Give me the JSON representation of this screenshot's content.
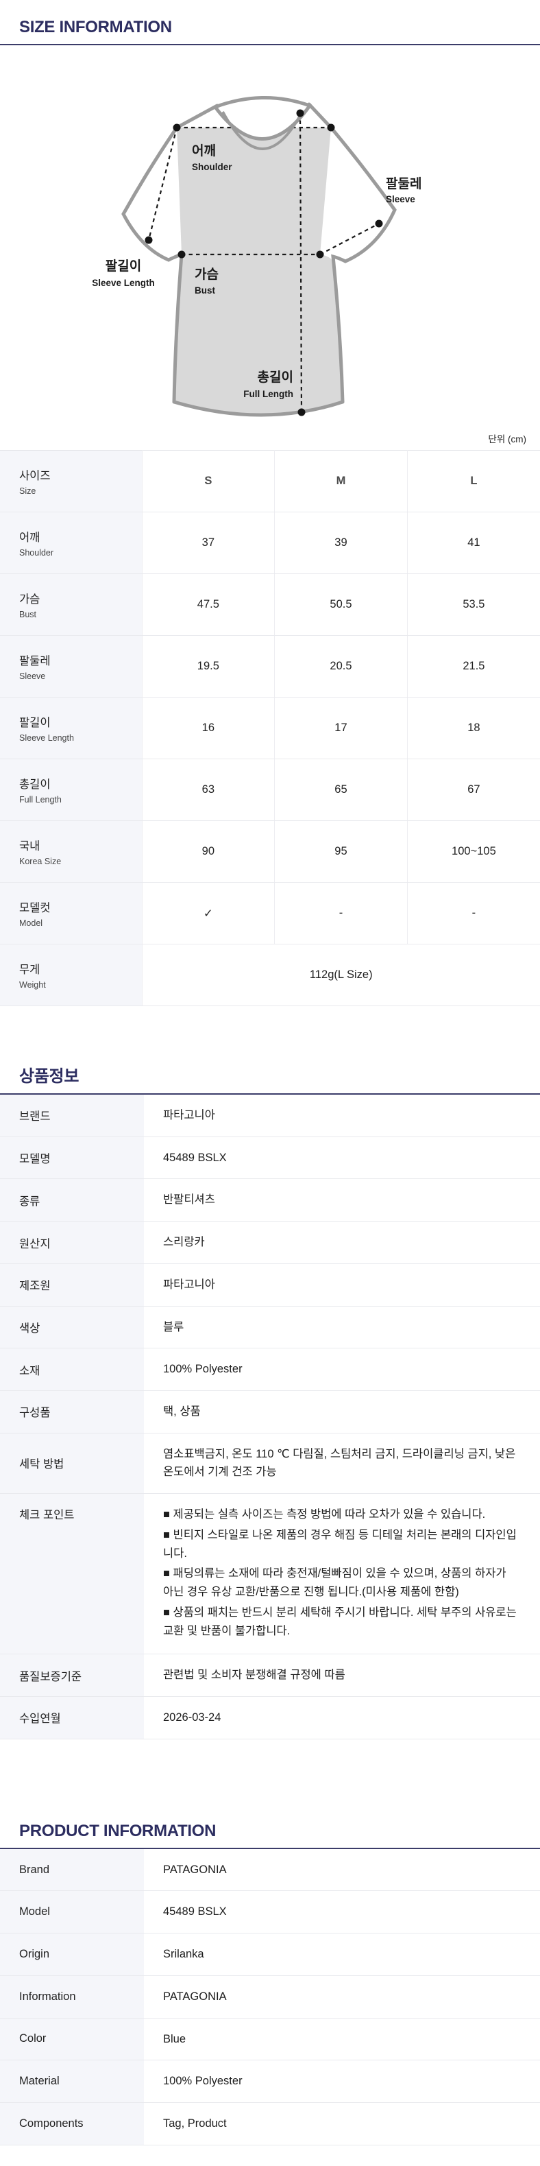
{
  "colors": {
    "accent_navy": "#2c2d60",
    "rule_navy": "#3b3c69",
    "label_column_bg": "#f5f6fa",
    "row_border": "#e9eaee",
    "shirt_panel_fill": "#d9d9d9",
    "shirt_outline": "#9b9b9b"
  },
  "size_section": {
    "title": "SIZE INFORMATION",
    "unit": "단위 (cm)",
    "diagram_labels": {
      "shoulder_kr": "어깨",
      "shoulder_en": "Shoulder",
      "sleeve_kr": "팔둘레",
      "sleeve_en": "Sleeve",
      "bust_kr": "가슴",
      "bust_en": "Bust",
      "sleeve_length_kr": "팔길이",
      "sleeve_length_en": "Sleeve Length",
      "full_length_kr": "총길이",
      "full_length_en": "Full Length"
    },
    "table": {
      "rows": [
        {
          "kr": "사이즈",
          "en": "Size",
          "values": [
            "S",
            "M",
            "L"
          ],
          "header": true
        },
        {
          "kr": "어깨",
          "en": "Shoulder",
          "values": [
            "37",
            "39",
            "41"
          ]
        },
        {
          "kr": "가슴",
          "en": "Bust",
          "values": [
            "47.5",
            "50.5",
            "53.5"
          ]
        },
        {
          "kr": "팔둘레",
          "en": "Sleeve",
          "values": [
            "19.5",
            "20.5",
            "21.5"
          ]
        },
        {
          "kr": "팔길이",
          "en": "Sleeve Length",
          "values": [
            "16",
            "17",
            "18"
          ]
        },
        {
          "kr": "총길이",
          "en": "Full Length",
          "values": [
            "63",
            "65",
            "67"
          ]
        },
        {
          "kr": "국내",
          "en": "Korea Size",
          "values": [
            "90",
            "95",
            "100~105"
          ]
        },
        {
          "kr": "모델컷",
          "en": "Model",
          "values": [
            "✓",
            "-",
            "-"
          ]
        },
        {
          "kr": "무게",
          "en": "Weight",
          "span_value": "112g(L Size)"
        }
      ]
    }
  },
  "product_section_kr": {
    "title": "상품정보",
    "rows": [
      {
        "label": "브랜드",
        "value": "파타고니아"
      },
      {
        "label": "모델명",
        "value": "45489 BSLX"
      },
      {
        "label": "종류",
        "value": "반팔티셔츠"
      },
      {
        "label": "원산지",
        "value": "스리랑카"
      },
      {
        "label": "제조원",
        "value": "파타고니아"
      },
      {
        "label": "색상",
        "value": "블루"
      },
      {
        "label": "소재",
        "value": "100% Polyester"
      },
      {
        "label": "구성품",
        "value": "택, 상품"
      },
      {
        "label": "세탁 방법",
        "value": "염소표백금지, 온도 110 ℃ 다림질, 스팀처리 금지, 드라이클리닝 금지, 낮은 온도에서 기계 건조 가능"
      },
      {
        "label": "체크 포인트",
        "bullets": [
          "■ 제공되는 실측 사이즈는 측정 방법에 따라 오차가 있을 수 있습니다.",
          "■ 빈티지 스타일로 나온 제품의 경우 해짐 등 디테일 처리는 본래의 디자인입니다.",
          "■ 패딩의류는 소재에 따라 충전재/털빠짐이 있을 수 있으며, 상품의 하자가 아닌 경우 유상 교환/반품으로 진행 됩니다.(미사용 제품에 한함)",
          "■ 상품의 패치는 반드시 분리 세탁해 주시기 바랍니다. 세탁 부주의 사유로는 교환 및 반품이 불가합니다."
        ]
      },
      {
        "label": "품질보증기준",
        "value": "관련법 및 소비자 분쟁해결 규정에 따름"
      },
      {
        "label": "수입연월",
        "value": "2026-03-24"
      }
    ]
  },
  "product_section_en": {
    "title": "PRODUCT INFORMATION",
    "rows": [
      {
        "label": "Brand",
        "value": "PATAGONIA"
      },
      {
        "label": "Model",
        "value": "45489 BSLX"
      },
      {
        "label": "Origin",
        "value": "Srilanka"
      },
      {
        "label": "Information",
        "value": "PATAGONIA"
      },
      {
        "label": "Color",
        "value": "Blue"
      },
      {
        "label": "Material",
        "value": "100% Polyester"
      },
      {
        "label": "Components",
        "value": "Tag, Product"
      }
    ]
  }
}
